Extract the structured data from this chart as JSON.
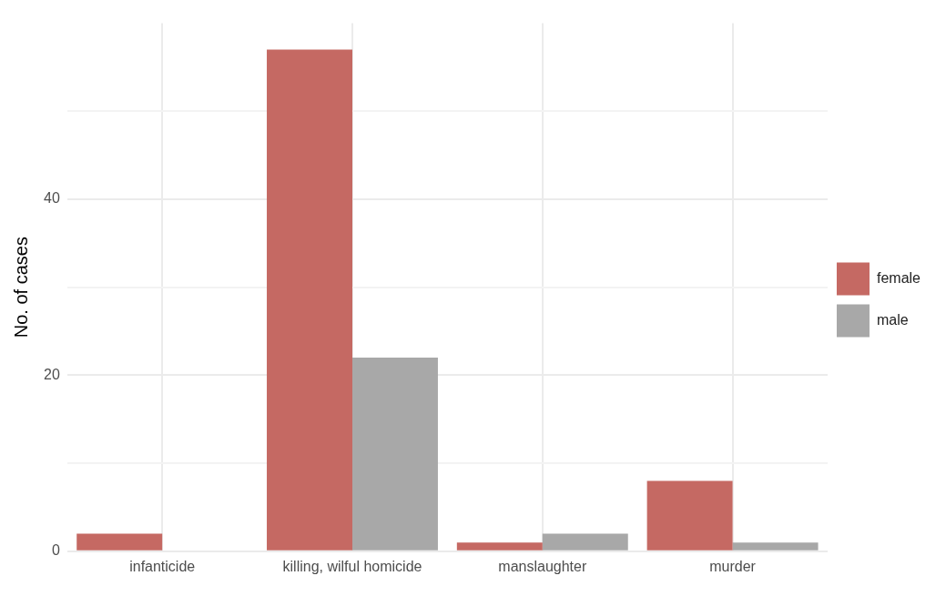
{
  "chart_data": {
    "type": "bar",
    "ylabel": "No. of cases",
    "categories": [
      "infanticide",
      "killing, wilful homicide",
      "manslaughter",
      "murder"
    ],
    "series": [
      {
        "name": "female",
        "color": "#c56963",
        "values": [
          2,
          57,
          1,
          8
        ]
      },
      {
        "name": "male",
        "color": "#a8a8a8",
        "values": [
          null,
          22,
          2,
          1
        ]
      }
    ],
    "ylim": [
      0,
      60
    ],
    "yticks": [
      0,
      {
        "value": 10,
        "label": null
      },
      20,
      {
        "value": 30,
        "label": null
      },
      40,
      {
        "value": 50,
        "label": null
      }
    ],
    "grid": true,
    "legend": "right"
  }
}
